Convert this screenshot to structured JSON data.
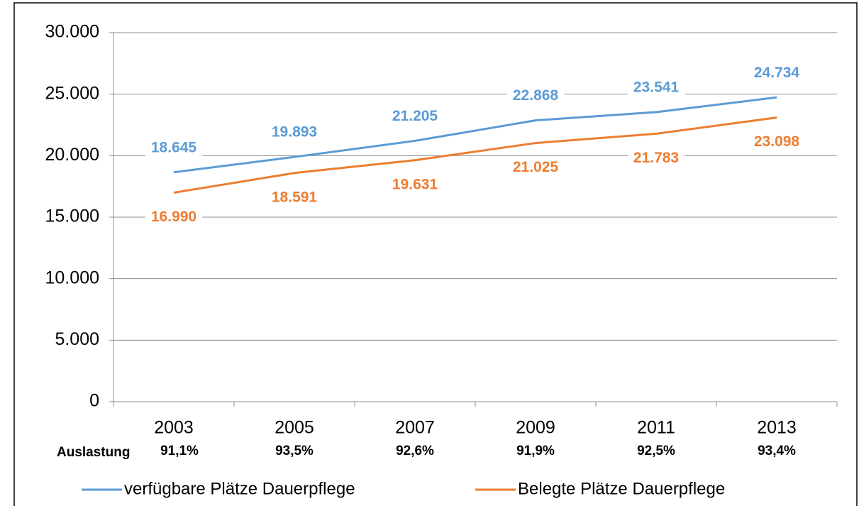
{
  "chart_data": {
    "type": "line",
    "categories": [
      "2003",
      "2005",
      "2007",
      "2009",
      "2011",
      "2013"
    ],
    "series": [
      {
        "name": "verfügbare Plätze Dauerpflege",
        "color": "#5b9bd5",
        "values": [
          18645,
          19893,
          21205,
          22868,
          23541,
          24734
        ],
        "value_labels": [
          "18.645",
          "19.893",
          "21.205",
          "22.868",
          "23.541",
          "24.734"
        ]
      },
      {
        "name": "Belegte Plätze Dauerpflege",
        "color": "#ed7d31",
        "values": [
          16990,
          18591,
          19631,
          21025,
          21783,
          23098
        ],
        "value_labels": [
          "16.990",
          "18.591",
          "19.631",
          "21.025",
          "21.783",
          "23.098"
        ]
      }
    ],
    "ylim": [
      0,
      30000
    ],
    "yticks": [
      0,
      {
        "value": 5000,
        "label": "5.000"
      },
      {
        "value": 10000,
        "label": "10.000"
      },
      {
        "value": 15000,
        "label": "15.000"
      },
      {
        "value": 20000,
        "label": "20.000"
      },
      {
        "value": 25000,
        "label": "25.000"
      },
      {
        "value": 30000,
        "label": "30.000"
      }
    ],
    "grid": true,
    "legend": "bottom",
    "utilization_label": "Auslastung",
    "utilization_labels": [
      "91,1%",
      "93,5%",
      "92,6%",
      "91,9%",
      "92,5%",
      "93,4%"
    ]
  }
}
